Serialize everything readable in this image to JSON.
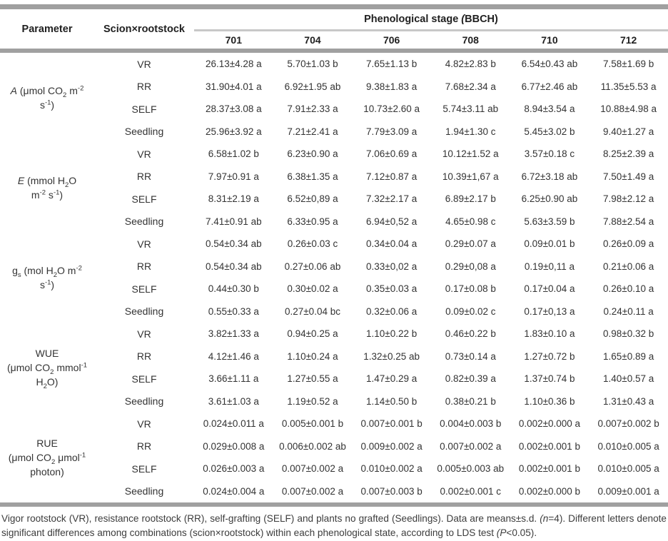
{
  "colors": {
    "rule_dark": "#a0a0a0",
    "rule_light": "#c8c8c8",
    "text": "#333333"
  },
  "table": {
    "header": {
      "parameter": "Parameter",
      "scion_rootstock": "Scion×rootstock",
      "stage_group_lines": [
        [
          {
            "t": "Phenological stage "
          },
          {
            "t": "(",
            "s": "i"
          },
          {
            "t": "BBCH)"
          }
        ]
      ],
      "stages": [
        "701",
        "704",
        "706",
        "708",
        "710",
        "712"
      ]
    },
    "groups": [
      {
        "parameter_lines": [
          [
            {
              "t": "A",
              "s": "i"
            },
            {
              "t": " (μmol CO"
            },
            {
              "t": "2",
              "s": "sub"
            },
            {
              "t": " m"
            },
            {
              "t": "-2",
              "s": "sup"
            }
          ],
          [
            {
              "t": "s"
            },
            {
              "t": "-1",
              "s": "sup"
            },
            {
              "t": ")"
            }
          ]
        ],
        "rows": [
          {
            "label": "VR",
            "values": [
              "26.13±4.28 a",
              "5.70±1.03 b",
              "7.65±1.13 b",
              "4.82±2.83 b",
              "6.54±0.43 ab",
              "7.58±1.69 b"
            ]
          },
          {
            "label": "RR",
            "values": [
              "31.90±4.01 a",
              "6.92±1.95 ab",
              "9.38±1.83 a",
              "7.68±2.34 a",
              "6.77±2.46 ab",
              "11.35±5.53 a"
            ]
          },
          {
            "label": "SELF",
            "values": [
              "28.37±3.08 a",
              "7.91±2.33 a",
              "10.73±2.60 a",
              "5.74±3.11 ab",
              "8.94±3.54 a",
              "10.88±4.98 a"
            ]
          },
          {
            "label": "Seedling",
            "values": [
              "25.96±3.92 a",
              "7.21±2.41 a",
              "7.79±3.09 a",
              "1.94±1.30 c",
              "5.45±3.02 b",
              "9.40±1.27 a"
            ]
          }
        ]
      },
      {
        "parameter_lines": [
          [
            {
              "t": "E",
              "s": "i"
            },
            {
              "t": " (mmol H"
            },
            {
              "t": "2",
              "s": "sub"
            },
            {
              "t": "O"
            }
          ],
          [
            {
              "t": "m"
            },
            {
              "t": "-2",
              "s": "sup"
            },
            {
              "t": " s"
            },
            {
              "t": "-1",
              "s": "sup"
            },
            {
              "t": ")"
            }
          ]
        ],
        "rows": [
          {
            "label": "VR",
            "values": [
              "6.58±1.02 b",
              "6.23±0.90 a",
              "7.06±0.69 a",
              "10.12±1.52 a",
              "3.57±0.18 c",
              "8.25±2.39 a"
            ]
          },
          {
            "label": "RR",
            "values": [
              "7.97±0.91 a",
              "6.38±1.35 a",
              "7.12±0.87 a",
              "10.39±1,67 a",
              "6.72±3.18 ab",
              "7.50±1.49 a"
            ]
          },
          {
            "label": "SELF",
            "values": [
              "8.31±2.19 a",
              "6.52±0,89 a",
              "7.32±2.17 a",
              "6.89±2.17 b",
              "6.25±0.90 ab",
              "7.98±2.12 a"
            ]
          },
          {
            "label": "Seedling",
            "values": [
              "7.41±0.91 ab",
              "6.33±0.95 a",
              "6.94±0,52 a",
              "4.65±0.98 c",
              "5.63±3.59 b",
              "7.88±2.54 a"
            ]
          }
        ]
      },
      {
        "parameter_lines": [
          [
            {
              "t": "g"
            },
            {
              "t": "s",
              "s": "sub"
            },
            {
              "t": " (mol H"
            },
            {
              "t": "2",
              "s": "sub"
            },
            {
              "t": "O m"
            },
            {
              "t": "-2",
              "s": "sup"
            }
          ],
          [
            {
              "t": "s"
            },
            {
              "t": "-1",
              "s": "sup"
            },
            {
              "t": ")"
            }
          ]
        ],
        "rows": [
          {
            "label": "VR",
            "values": [
              "0.54±0.34 ab",
              "0.26±0.03 c",
              "0.34±0.04 a",
              "0.29±0.07 a",
              "0.09±0.01 b",
              "0.26±0.09 a"
            ]
          },
          {
            "label": "RR",
            "values": [
              "0.54±0.34 ab",
              "0.27±0.06 ab",
              "0.33±0,02 a",
              "0.29±0,08 a",
              "0.19±0,11 a",
              "0.21±0.06 a"
            ]
          },
          {
            "label": "SELF",
            "values": [
              "0.44±0.30 b",
              "0.30±0.02 a",
              "0.35±0.03 a",
              "0.17±0.08 b",
              "0.17±0.04 a",
              "0.26±0.10 a"
            ]
          },
          {
            "label": "Seedling",
            "values": [
              "0.55±0.33 a",
              "0.27±0.04 bc",
              "0.32±0.06 a",
              "0.09±0.02 c",
              "0.17±0,13 a",
              "0.24±0.11 a"
            ]
          }
        ]
      },
      {
        "parameter_lines": [
          [
            {
              "t": "WUE"
            }
          ],
          [
            {
              "t": "(μmol CO"
            },
            {
              "t": "2",
              "s": "sub"
            },
            {
              "t": " mmol"
            },
            {
              "t": "-1",
              "s": "sup"
            }
          ],
          [
            {
              "t": "H"
            },
            {
              "t": "2",
              "s": "sub"
            },
            {
              "t": "O)"
            }
          ]
        ],
        "rows": [
          {
            "label": "VR",
            "values": [
              "3.82±1.33 a",
              "0.94±0.25 a",
              "1.10±0.22 b",
              "0.46±0.22 b",
              "1.83±0.10 a",
              "0.98±0.32 b"
            ]
          },
          {
            "label": "RR",
            "values": [
              "4.12±1.46 a",
              "1.10±0.24 a",
              "1.32±0.25 ab",
              "0.73±0.14 a",
              "1.27±0.72 b",
              "1.65±0.89 a"
            ]
          },
          {
            "label": "SELF",
            "values": [
              "3.66±1.11 a",
              "1.27±0.55 a",
              "1.47±0.29 a",
              "0.82±0.39 a",
              "1.37±0.74 b",
              "1.40±0.57 a"
            ]
          },
          {
            "label": "Seedling",
            "values": [
              "3.61±1.03 a",
              "1.19±0.52 a",
              "1.14±0.50 b",
              "0.38±0.21 b",
              "1.10±0.36 b",
              "1.31±0.43 a"
            ]
          }
        ]
      },
      {
        "parameter_lines": [
          [
            {
              "t": "RUE"
            }
          ],
          [
            {
              "t": "(μmol CO"
            },
            {
              "t": "2",
              "s": "sub"
            },
            {
              "t": " μmol"
            },
            {
              "t": "-1",
              "s": "sup"
            }
          ],
          [
            {
              "t": "photon)"
            }
          ]
        ],
        "rows": [
          {
            "label": "VR",
            "values": [
              "0.024±0.011 a",
              "0.005±0.001 b",
              "0.007±0.001 b",
              "0.004±0.003 b",
              "0.002±0.000 a",
              "0.007±0.002 b"
            ]
          },
          {
            "label": "RR",
            "values": [
              "0.029±0.008 a",
              "0.006±0.002 ab",
              "0.009±0.002 a",
              "0.007±0.002 a",
              "0.002±0.001 b",
              "0.010±0.005 a"
            ]
          },
          {
            "label": "SELF",
            "values": [
              "0.026±0.003 a",
              "0.007±0.002 a",
              "0.010±0.002 a",
              "0.005±0.003 ab",
              "0.002±0.001 b",
              "0.010±0.005 a"
            ]
          },
          {
            "label": "Seedling",
            "values": [
              "0.024±0.004 a",
              "0.007±0.002 a",
              "0.007±0.003 b",
              "0.002±0.001 c",
              "0.002±0.000 b",
              "0.009±0.001 a"
            ]
          }
        ]
      }
    ],
    "footnote_lines": [
      [
        {
          "t": "Vigor rootstock (VR), resistance rootstock (RR), self-grafting (SELF) and plants no grafted (Seedlings). Data are means±s.d. "
        },
        {
          "t": "(n",
          "s": "i"
        },
        {
          "t": "=4). Different letters denote significant differences among combinations (scion×rootstock) within each phenological state, according to LDS test "
        },
        {
          "t": "(P",
          "s": "i"
        },
        {
          "t": "<0.05)."
        }
      ]
    ]
  }
}
